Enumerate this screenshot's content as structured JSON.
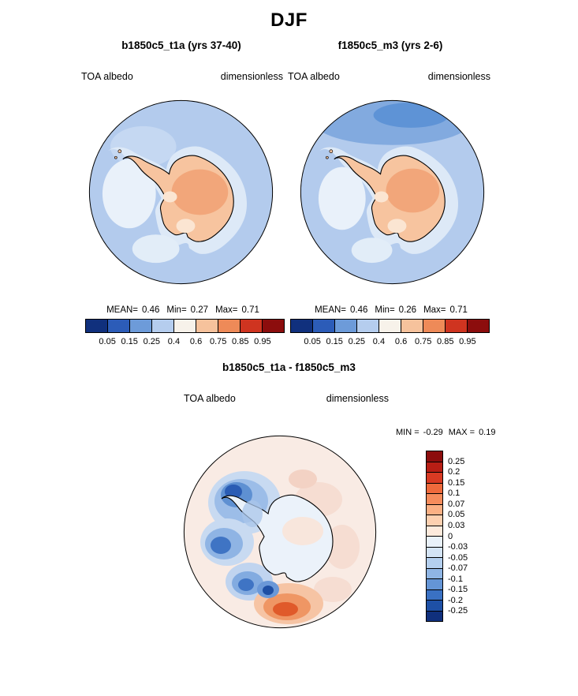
{
  "title": "DJF",
  "panels": [
    {
      "title": "b1850c5_t1a (yrs 37-40)",
      "field_label": "TOA albedo",
      "units_label": "dimensionless",
      "stats": {
        "mean_label": "MEAN=",
        "mean": "0.46",
        "min_label": "Min=",
        "min": "0.27",
        "max_label": "Max=",
        "max": "0.71"
      },
      "colorbar": {
        "ticks": [
          "0.05",
          "0.15",
          "0.25",
          "0.4",
          "0.6",
          "0.75",
          "0.85",
          "0.95"
        ],
        "colors": [
          "#10307d",
          "#2c5cb8",
          "#6d9bd9",
          "#b5cdee",
          "#f7f2ea",
          "#f6c29c",
          "#ee8a58",
          "#cf3420",
          "#8c0d0d"
        ]
      }
    },
    {
      "title": "f1850c5_m3 (yrs 2-6)",
      "field_label": "TOA albedo",
      "units_label": "dimensionless",
      "stats": {
        "mean_label": "MEAN=",
        "mean": "0.46",
        "min_label": "Min=",
        "min": "0.26",
        "max_label": "Max=",
        "max": "0.71"
      },
      "colorbar": {
        "ticks": [
          "0.05",
          "0.15",
          "0.25",
          "0.4",
          "0.6",
          "0.75",
          "0.85",
          "0.95"
        ],
        "colors": [
          "#10307d",
          "#2c5cb8",
          "#6d9bd9",
          "#b5cdee",
          "#f7f2ea",
          "#f6c29c",
          "#ee8a58",
          "#cf3420",
          "#8c0d0d"
        ]
      }
    }
  ],
  "diff": {
    "title": "b1850c5_t1a - f1850c5_m3",
    "field_label": "TOA albedo",
    "units_label": "dimensionless",
    "stats": {
      "min_label": "MIN =",
      "min": "-0.29",
      "max_label": "MAX =",
      "max": "0.19"
    },
    "colorbar": {
      "ticks": [
        "0.25",
        "0.2",
        "0.15",
        "0.1",
        "0.07",
        "0.05",
        "0.03",
        "0",
        "-0.03",
        "-0.05",
        "-0.07",
        "-0.1",
        "-0.15",
        "-0.2",
        "-0.25"
      ],
      "colors": [
        "#8c0d0d",
        "#b81e15",
        "#d93a23",
        "#ef6a3c",
        "#f68c5c",
        "#fbb084",
        "#fdd0b0",
        "#fdeadc",
        "#e9f1f9",
        "#d4e4f5",
        "#b4cfee",
        "#8fb5e4",
        "#6495d6",
        "#3a71c3",
        "#1e50a6",
        "#10307d"
      ]
    }
  },
  "chart_data": [
    {
      "type": "heatmap",
      "projection": "south-polar-stereographic",
      "season": "DJF",
      "title": "b1850c5_t1a (yrs 37-40)",
      "variable": "TOA albedo",
      "units": "dimensionless",
      "stats": {
        "mean": 0.46,
        "min": 0.27,
        "max": 0.71
      },
      "contour_levels": [
        0.05,
        0.15,
        0.25,
        0.4,
        0.6,
        0.75,
        0.85,
        0.95
      ],
      "colormap_hex": [
        "#10307d",
        "#2c5cb8",
        "#6d9bd9",
        "#b5cdee",
        "#f7f2ea",
        "#f6c29c",
        "#ee8a58",
        "#cf3420",
        "#8c0d0d"
      ],
      "legend_position": "horizontal colorbar below panel",
      "pattern_summary": "Southern Ocean mostly in the 0.25-0.4 bin (pale blue); near-coastal ocean and ice-shelf areas 0.4-0.6 (near white); Antarctic continent mostly 0.6-0.75 (light salmon) with interior plateau patches in 0.75-0.85."
    },
    {
      "type": "heatmap",
      "projection": "south-polar-stereographic",
      "season": "DJF",
      "title": "f1850c5_m3 (yrs 2-6)",
      "variable": "TOA albedo",
      "units": "dimensionless",
      "stats": {
        "mean": 0.46,
        "min": 0.26,
        "max": 0.71
      },
      "contour_levels": [
        0.05,
        0.15,
        0.25,
        0.4,
        0.6,
        0.75,
        0.85,
        0.95
      ],
      "colormap_hex": [
        "#10307d",
        "#2c5cb8",
        "#6d9bd9",
        "#b5cdee",
        "#f7f2ea",
        "#f6c29c",
        "#ee8a58",
        "#cf3420",
        "#8c0d0d"
      ],
      "legend_position": "horizontal colorbar below panel",
      "pattern_summary": "Similar to b1850c5_t1a, plus a band of lower albedo 0.15-0.25 (medium blue) along the outer edge at the top of the panel."
    },
    {
      "type": "heatmap",
      "projection": "south-polar-stereographic",
      "season": "DJF",
      "title": "b1850c5_t1a - f1850c5_m3",
      "variable": "TOA albedo difference",
      "units": "dimensionless",
      "stats": {
        "min": -0.29,
        "max": 0.19
      },
      "contour_levels": [
        -0.25,
        -0.2,
        -0.15,
        -0.1,
        -0.07,
        -0.05,
        -0.03,
        0,
        0.03,
        0.05,
        0.07,
        0.1,
        0.15,
        0.2,
        0.25
      ],
      "colormap_hex_top_to_bottom": [
        "#8c0d0d",
        "#b81e15",
        "#d93a23",
        "#ef6a3c",
        "#f68c5c",
        "#fbb084",
        "#fdd0b0",
        "#fdeadc",
        "#e9f1f9",
        "#d4e4f5",
        "#b4cfee",
        "#8fb5e4",
        "#6495d6",
        "#3a71c3",
        "#1e50a6",
        "#10307d"
      ],
      "legend_position": "vertical colorbar right of panel",
      "pattern_summary": "Differences near zero (within ±0.03) over most of the domain; strong negative anomalies (blues, down to -0.29) in ocean sectors around and left of the Antarctic Peninsula and lower-left quadrant; positive anomalies (oranges/reds, up to +0.19) at bottom center of the panel."
    }
  ]
}
